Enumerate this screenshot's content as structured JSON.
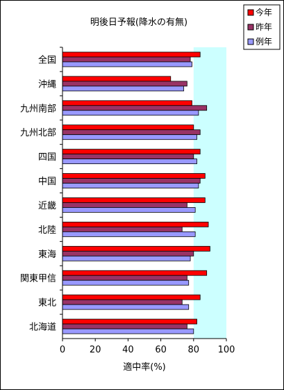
{
  "chart_data": {
    "type": "bar",
    "orientation": "horizontal",
    "title": "明後日予報(降水の有無)",
    "xlabel": "適中率(%)",
    "ylabel": "",
    "xlim": [
      0,
      100
    ],
    "xticks": [
      "0",
      "20",
      "40",
      "60",
      "80",
      "100"
    ],
    "grid": false,
    "legend_position": "top-right",
    "categories": [
      "全国",
      "沖縄",
      "九州南部",
      "九州北部",
      "四国",
      "中国",
      "近畿",
      "北陸",
      "東海",
      "関東甲信",
      "東北",
      "北海道"
    ],
    "series": [
      {
        "name": "今年",
        "color": "#ff0000",
        "values": [
          84,
          66,
          79,
          80,
          84,
          87,
          87,
          89,
          90,
          88,
          84,
          82
        ]
      },
      {
        "name": "昨年",
        "color": "#993366",
        "values": [
          78,
          76,
          88,
          84,
          80,
          84,
          76,
          73,
          80,
          76,
          73,
          76
        ]
      },
      {
        "name": "例年",
        "color": "#9999ff",
        "values": [
          79,
          74,
          83,
          82,
          82,
          83,
          81,
          81,
          78,
          77,
          77,
          80
        ]
      }
    ],
    "colors": {
      "plot_area": "#ccffff",
      "bar_border": "#000000"
    }
  }
}
